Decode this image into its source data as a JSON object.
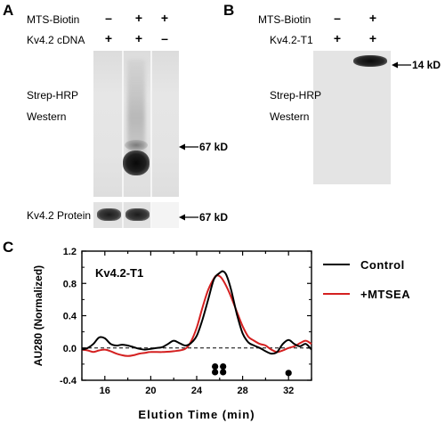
{
  "panel_a": {
    "letter": "A",
    "rows": [
      {
        "label": "MTS-Biotin",
        "signs": [
          "–",
          "+",
          "+"
        ]
      },
      {
        "label": "Kv4.2 cDNA",
        "signs": [
          "+",
          "+",
          "–"
        ]
      }
    ],
    "blot_labels": [
      "Strep-HRP",
      "Western"
    ],
    "marker": "67 kD",
    "protein_label": "Kv4.2 Protein",
    "protein_marker": "67 kD"
  },
  "panel_b": {
    "letter": "B",
    "rows": [
      {
        "label": "MTS-Biotin",
        "signs": [
          "–",
          "+"
        ]
      },
      {
        "label": "Kv4.2-T1",
        "signs": [
          "+",
          "+"
        ]
      }
    ],
    "blot_labels": [
      "Strep-HRP",
      "Western"
    ],
    "marker": "14 kD"
  },
  "panel_c": {
    "letter": "C",
    "chart_data": {
      "type": "line",
      "title": "Kv4.2-T1",
      "xlabel": "Elution Time (min)",
      "ylabel": "AU280 (Normalized)",
      "xlim": [
        14,
        34
      ],
      "ylim": [
        -0.4,
        1.2
      ],
      "xticks": [
        16,
        20,
        24,
        28,
        32
      ],
      "yticks": [
        -0.4,
        0.0,
        0.4,
        0.8,
        1.2
      ],
      "ytick_labels": [
        "-0.4",
        "0.0",
        "0.4",
        "0.8",
        "1.2"
      ],
      "baseline": 0,
      "legend_position": "right",
      "series": [
        {
          "name": "Control",
          "color": "#000000",
          "points": [
            [
              14,
              -0.02
            ],
            [
              14.5,
              0.0
            ],
            [
              15,
              0.05
            ],
            [
              15.5,
              0.13
            ],
            [
              16,
              0.12
            ],
            [
              16.5,
              0.05
            ],
            [
              17,
              0.03
            ],
            [
              17.5,
              0.04
            ],
            [
              18,
              0.03
            ],
            [
              18.5,
              0.01
            ],
            [
              19,
              -0.01
            ],
            [
              19.5,
              -0.02
            ],
            [
              20,
              -0.01
            ],
            [
              20.5,
              0.0
            ],
            [
              21,
              0.01
            ],
            [
              21.5,
              0.05
            ],
            [
              22,
              0.09
            ],
            [
              22.5,
              0.06
            ],
            [
              23,
              0.03
            ],
            [
              23.5,
              0.06
            ],
            [
              24,
              0.15
            ],
            [
              24.5,
              0.35
            ],
            [
              25,
              0.6
            ],
            [
              25.5,
              0.85
            ],
            [
              26,
              0.93
            ],
            [
              26.3,
              0.95
            ],
            [
              26.6,
              0.9
            ],
            [
              27,
              0.72
            ],
            [
              27.5,
              0.42
            ],
            [
              28,
              0.18
            ],
            [
              28.5,
              0.07
            ],
            [
              29,
              0.03
            ],
            [
              29.5,
              0.0
            ],
            [
              30,
              -0.04
            ],
            [
              30.5,
              -0.07
            ],
            [
              31,
              -0.05
            ],
            [
              31.5,
              0.05
            ],
            [
              32,
              0.1
            ],
            [
              32.5,
              0.05
            ],
            [
              33,
              0.02
            ],
            [
              33.5,
              0.05
            ],
            [
              34,
              -0.02
            ]
          ]
        },
        {
          "name": "+MTSEA",
          "color": "#d42020",
          "points": [
            [
              14,
              -0.02
            ],
            [
              14.5,
              -0.03
            ],
            [
              15,
              -0.05
            ],
            [
              15.5,
              -0.03
            ],
            [
              16,
              -0.02
            ],
            [
              16.5,
              -0.04
            ],
            [
              17,
              -0.07
            ],
            [
              17.5,
              -0.09
            ],
            [
              18,
              -0.1
            ],
            [
              18.5,
              -0.09
            ],
            [
              19,
              -0.07
            ],
            [
              19.5,
              -0.06
            ],
            [
              20,
              -0.05
            ],
            [
              21,
              -0.05
            ],
            [
              22,
              -0.04
            ],
            [
              23,
              -0.01
            ],
            [
              23.5,
              0.08
            ],
            [
              24,
              0.25
            ],
            [
              24.5,
              0.5
            ],
            [
              25,
              0.72
            ],
            [
              25.5,
              0.86
            ],
            [
              25.8,
              0.9
            ],
            [
              26.2,
              0.86
            ],
            [
              26.8,
              0.7
            ],
            [
              27.5,
              0.45
            ],
            [
              28,
              0.27
            ],
            [
              28.5,
              0.14
            ],
            [
              29,
              0.09
            ],
            [
              29.5,
              0.05
            ],
            [
              30,
              0.03
            ],
            [
              30.5,
              -0.02
            ],
            [
              31,
              -0.05
            ],
            [
              31.5,
              -0.03
            ],
            [
              32,
              0.0
            ],
            [
              32.5,
              0.02
            ],
            [
              33,
              0.06
            ],
            [
              33.5,
              0.09
            ],
            [
              34,
              0.05
            ]
          ]
        }
      ],
      "markers": [
        {
          "x": 25.6,
          "y": -0.23
        },
        {
          "x": 26.3,
          "y": -0.23
        },
        {
          "x": 25.6,
          "y": -0.3
        },
        {
          "x": 26.3,
          "y": -0.3
        },
        {
          "x": 32.0,
          "y": -0.31
        }
      ]
    }
  }
}
